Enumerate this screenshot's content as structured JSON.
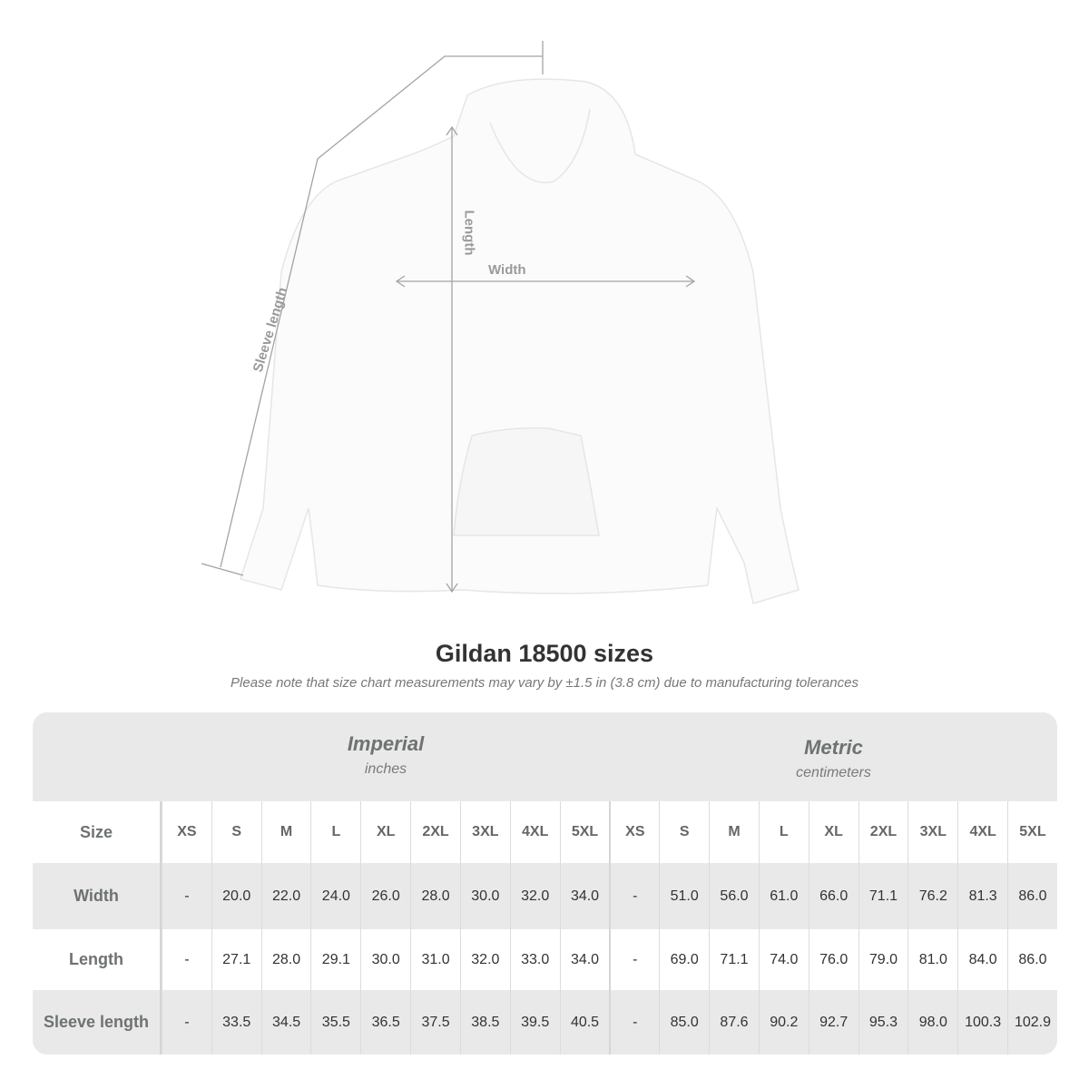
{
  "diagram": {
    "labels": {
      "sleeve_length": "Sleeve length",
      "length": "Length",
      "width": "Width"
    }
  },
  "title": "Gildan 18500 sizes",
  "note": "Please note that size chart measurements may vary by ±1.5 in (3.8 cm) due to manufacturing tolerances",
  "table": {
    "imperial": {
      "name": "Imperial",
      "unit": "inches"
    },
    "metric": {
      "name": "Metric",
      "unit": "centimeters"
    },
    "size_label": "Size",
    "sizes": [
      "XS",
      "S",
      "M",
      "L",
      "XL",
      "2XL",
      "3XL",
      "4XL",
      "5XL"
    ],
    "rows": [
      {
        "label": "Width",
        "imperial": [
          "-",
          "20.0",
          "22.0",
          "24.0",
          "26.0",
          "28.0",
          "30.0",
          "32.0",
          "34.0"
        ],
        "metric": [
          "-",
          "51.0",
          "56.0",
          "61.0",
          "66.0",
          "71.1",
          "76.2",
          "81.3",
          "86.0"
        ]
      },
      {
        "label": "Length",
        "imperial": [
          "-",
          "27.1",
          "28.0",
          "29.1",
          "30.0",
          "31.0",
          "32.0",
          "33.0",
          "34.0"
        ],
        "metric": [
          "-",
          "69.0",
          "71.1",
          "74.0",
          "76.0",
          "79.0",
          "81.0",
          "84.0",
          "86.0"
        ]
      },
      {
        "label": "Sleeve length",
        "imperial": [
          "-",
          "33.5",
          "34.5",
          "35.5",
          "36.5",
          "37.5",
          "38.5",
          "39.5",
          "40.5"
        ],
        "metric": [
          "-",
          "85.0",
          "87.6",
          "90.2",
          "92.7",
          "95.3",
          "98.0",
          "100.3",
          "102.9"
        ]
      }
    ]
  }
}
